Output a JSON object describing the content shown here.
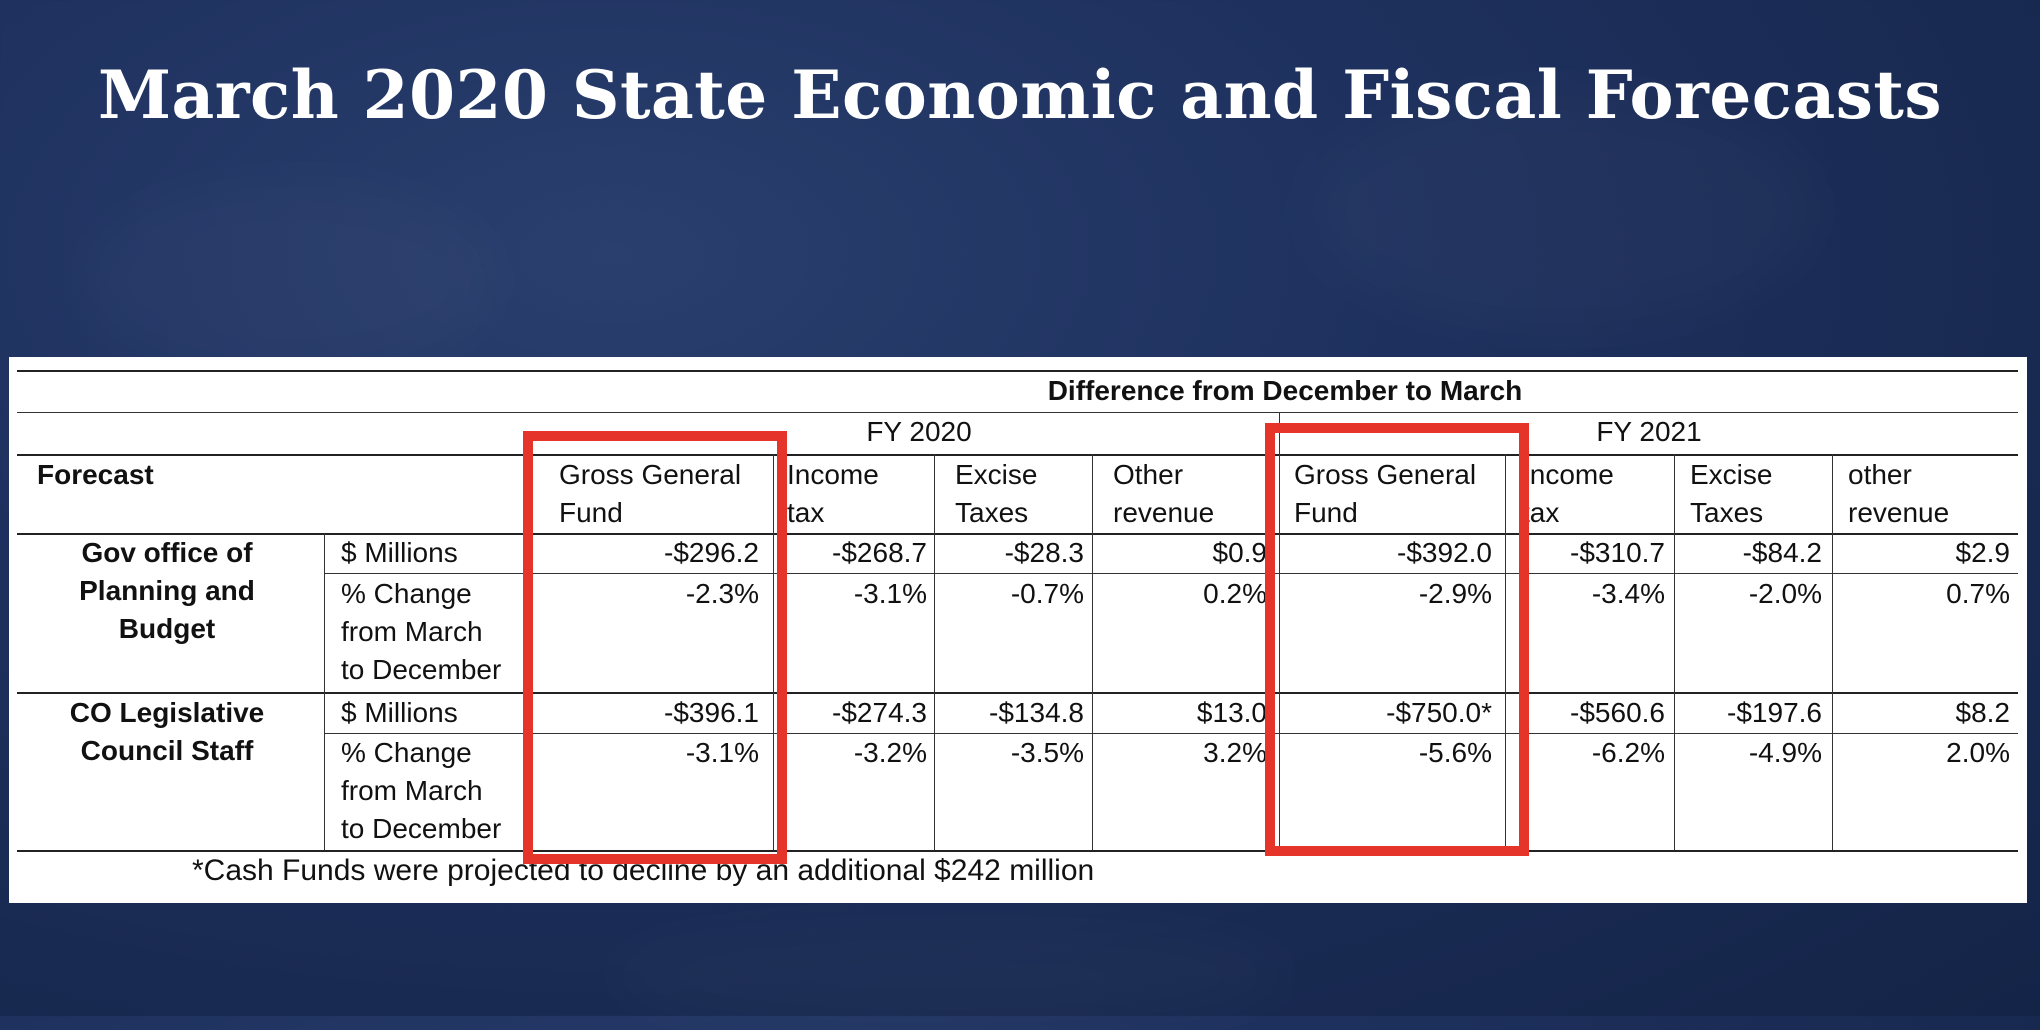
{
  "slide": {
    "title": "March 2020 State Economic and Fiscal Forecasts"
  },
  "table": {
    "super_header": "Difference from December to March",
    "fy_headers": [
      "FY 2020",
      "FY 2021"
    ],
    "forecast_label": "Forecast",
    "columns": [
      [
        "Gross General",
        "Fund"
      ],
      [
        "Income",
        "tax"
      ],
      [
        "Excise",
        "Taxes"
      ],
      [
        "Other",
        "revenue"
      ],
      [
        "Gross General",
        "Fund"
      ],
      [
        "Income",
        "tax"
      ],
      [
        "Excise",
        "Taxes"
      ],
      [
        "other",
        "revenue"
      ]
    ],
    "groups": [
      {
        "name_lines": [
          "Gov office of",
          "Planning and",
          "Budget"
        ],
        "rows": [
          {
            "label_lines": [
              "$ Millions"
            ],
            "values": [
              "-$296.2",
              "-$268.7",
              "-$28.3",
              "$0.9",
              "-$392.0",
              "-$310.7",
              "-$84.2",
              "$2.9"
            ]
          },
          {
            "label_lines": [
              "% Change",
              "from March",
              "to December"
            ],
            "values": [
              "-2.3%",
              "-3.1%",
              "-0.7%",
              "0.2%",
              "-2.9%",
              "-3.4%",
              "-2.0%",
              "0.7%"
            ]
          }
        ]
      },
      {
        "name_lines": [
          "CO Legislative",
          "Council Staff"
        ],
        "rows": [
          {
            "label_lines": [
              "$ Millions"
            ],
            "values": [
              "-$396.1",
              "-$274.3",
              "-$134.8",
              "$13.0",
              "-$750.0*",
              "-$560.6",
              "-$197.6",
              "$8.2"
            ]
          },
          {
            "label_lines": [
              "% Change",
              "from March",
              "to December"
            ],
            "values": [
              "-3.1%",
              "-3.2%",
              "-3.5%",
              "3.2%",
              "-5.6%",
              "-6.2%",
              "-4.9%",
              "2.0%"
            ]
          }
        ]
      }
    ],
    "footnote": "*Cash Funds were projected to decline by an additional $242 million",
    "highlight_color": "#e5352b"
  }
}
